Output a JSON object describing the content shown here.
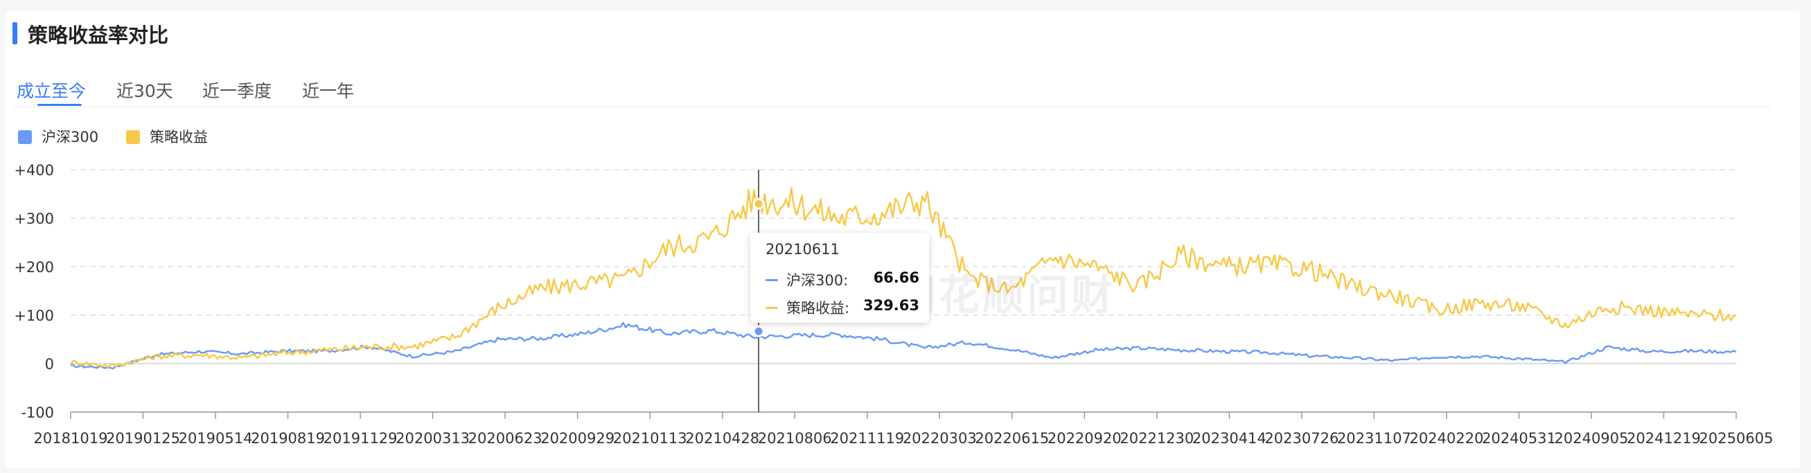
{
  "header": {
    "title": "策略收益率对比"
  },
  "tabs": [
    {
      "label": "成立至今",
      "active": true
    },
    {
      "label": "近30天",
      "active": false
    },
    {
      "label": "近一季度",
      "active": false
    },
    {
      "label": "近一年",
      "active": false
    }
  ],
  "watermark": "同花顺问财",
  "tooltip": {
    "date": "20210611",
    "rows": [
      {
        "name": "沪深300:",
        "value": "66.66"
      },
      {
        "name": "策略收益:",
        "value": "329.63"
      }
    ]
  },
  "chart_data": {
    "type": "line",
    "title": "",
    "xlabel": "",
    "ylabel": "",
    "ylim": [
      -100,
      400
    ],
    "yticks": [
      -100,
      0,
      100,
      200,
      300,
      400
    ],
    "ytick_labels": [
      "-100",
      "0",
      "+100",
      "+200",
      "+300",
      "+400"
    ],
    "grid": true,
    "legend_position": "top-left",
    "x_tick_labels": [
      "20181019",
      "20190125",
      "20190514",
      "20190819",
      "20191129",
      "20200313",
      "20200623",
      "20200929",
      "20210113",
      "20210428",
      "20210806",
      "20211119",
      "20220303",
      "20220615",
      "20220920",
      "20221230",
      "20230414",
      "20230726",
      "20231107",
      "20240220",
      "20240531",
      "20240905",
      "20241219",
      "20250605"
    ],
    "highlight_index": 9.5,
    "series": [
      {
        "name": "沪深300",
        "color": "#6b9af6",
        "values": [
          -5,
          -8,
          18,
          25,
          20,
          26,
          26,
          35,
          15,
          25,
          50,
          52,
          62,
          80,
          62,
          68,
          55,
          58,
          60,
          50,
          32,
          44,
          30,
          12,
          28,
          32,
          28,
          25,
          23,
          16,
          12,
          6,
          14,
          15,
          10,
          3,
          34,
          25,
          26,
          24
        ]
      },
      {
        "name": "策略收益",
        "color": "#f7c948",
        "values": [
          3,
          -5,
          15,
          18,
          12,
          22,
          28,
          35,
          35,
          55,
          115,
          155,
          165,
          175,
          240,
          260,
          340,
          330,
          300,
          310,
          340,
          180,
          150,
          220,
          200,
          160,
          225,
          200,
          205,
          195,
          160,
          140,
          110,
          125,
          118,
          80,
          118,
          110,
          100,
          100
        ]
      }
    ]
  }
}
